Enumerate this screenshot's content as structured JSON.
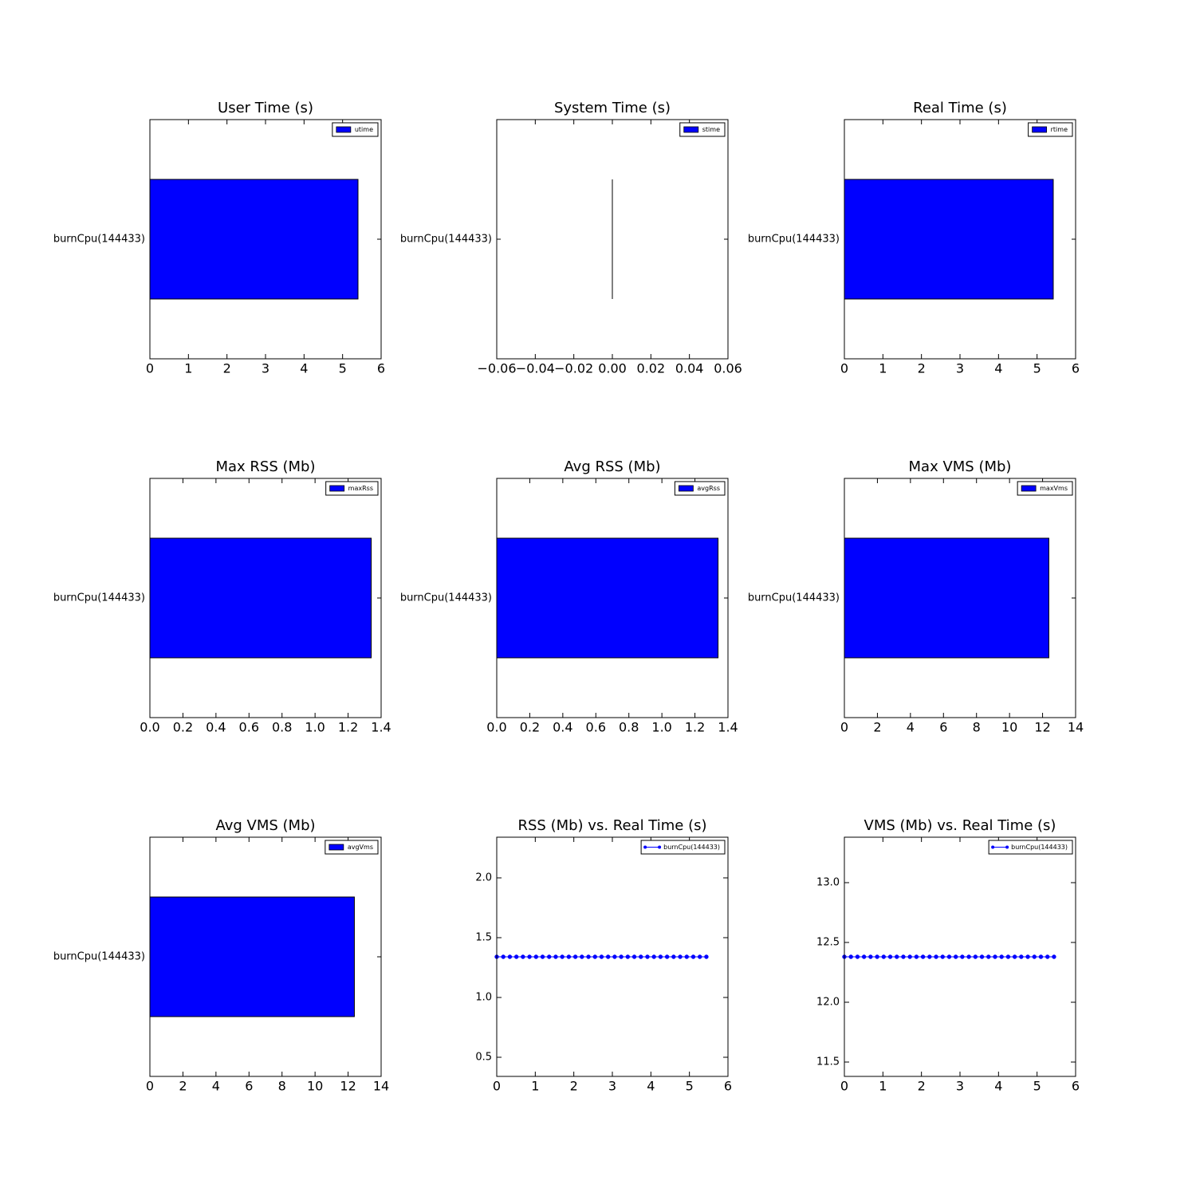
{
  "chart_data": [
    {
      "type": "barh",
      "title": "User Time (s)",
      "categories": [
        "burnCpu(144433)"
      ],
      "series": [
        {
          "name": "utime",
          "color": "#0000ff",
          "values": [
            5.4
          ]
        }
      ],
      "xlim": [
        0,
        6
      ],
      "xticks": [
        0,
        1,
        2,
        3,
        4,
        5,
        6
      ],
      "legend": "upper right"
    },
    {
      "type": "barh",
      "title": "System Time (s)",
      "categories": [
        "burnCpu(144433)"
      ],
      "series": [
        {
          "name": "stime",
          "color": "#0000ff",
          "values": [
            0
          ]
        }
      ],
      "xlim": [
        -0.06,
        0.06
      ],
      "xticks": [
        {
          "value": -0.06,
          "label": "−0.06"
        },
        {
          "value": -0.04,
          "label": "−0.04"
        },
        {
          "value": -0.02,
          "label": "−0.02"
        },
        {
          "value": 0,
          "label": "0.00"
        },
        0.02,
        0.04,
        0.06
      ],
      "legend": "upper right"
    },
    {
      "type": "barh",
      "title": "Real Time (s)",
      "categories": [
        "burnCpu(144433)"
      ],
      "series": [
        {
          "name": "rtime",
          "color": "#0000ff",
          "values": [
            5.42
          ]
        }
      ],
      "xlim": [
        0,
        6
      ],
      "xticks": [
        0,
        1,
        2,
        3,
        4,
        5,
        6
      ],
      "legend": "upper right"
    },
    {
      "type": "barh",
      "title": "Max RSS (Mb)",
      "categories": [
        "burnCpu(144433)"
      ],
      "series": [
        {
          "name": "maxRss",
          "color": "#0000ff",
          "values": [
            1.34
          ]
        }
      ],
      "xlim": [
        0,
        1.4
      ],
      "xticks": [
        {
          "value": 0,
          "label": "0.0"
        },
        0.2,
        0.4,
        0.6,
        0.8,
        {
          "value": 1,
          "label": "1.0"
        },
        1.2,
        1.4
      ],
      "legend": "upper right"
    },
    {
      "type": "barh",
      "title": "Avg RSS (Mb)",
      "categories": [
        "burnCpu(144433)"
      ],
      "series": [
        {
          "name": "avgRss",
          "color": "#0000ff",
          "values": [
            1.34
          ]
        }
      ],
      "xlim": [
        0,
        1.4
      ],
      "xticks": [
        {
          "value": 0,
          "label": "0.0"
        },
        0.2,
        0.4,
        0.6,
        0.8,
        {
          "value": 1,
          "label": "1.0"
        },
        1.2,
        1.4
      ],
      "legend": "upper right"
    },
    {
      "type": "barh",
      "title": "Max VMS (Mb)",
      "categories": [
        "burnCpu(144433)"
      ],
      "series": [
        {
          "name": "maxVms",
          "color": "#0000ff",
          "values": [
            12.38
          ]
        }
      ],
      "xlim": [
        0,
        14
      ],
      "xticks": [
        0,
        2,
        4,
        6,
        8,
        10,
        12,
        14
      ],
      "legend": "upper right"
    },
    {
      "type": "barh",
      "title": "Avg VMS (Mb)",
      "categories": [
        "burnCpu(144433)"
      ],
      "series": [
        {
          "name": "avgVms",
          "color": "#0000ff",
          "values": [
            12.38
          ]
        }
      ],
      "xlim": [
        0,
        14
      ],
      "xticks": [
        0,
        2,
        4,
        6,
        8,
        10,
        12,
        14
      ],
      "legend": "upper right"
    },
    {
      "type": "line",
      "title": "RSS (Mb) vs. Real Time (s)",
      "x": [
        0,
        0.17,
        0.34,
        0.51,
        0.68,
        0.85,
        1.02,
        1.19,
        1.36,
        1.53,
        1.7,
        1.87,
        2.04,
        2.21,
        2.38,
        2.55,
        2.72,
        2.89,
        3.06,
        3.23,
        3.4,
        3.57,
        3.74,
        3.91,
        4.08,
        4.25,
        4.42,
        4.59,
        4.76,
        4.93,
        5.1,
        5.27,
        5.44
      ],
      "series": [
        {
          "name": "burnCpu(144433)",
          "color": "#0000ff",
          "values": [
            1.34,
            1.34,
            1.34,
            1.34,
            1.34,
            1.34,
            1.34,
            1.34,
            1.34,
            1.34,
            1.34,
            1.34,
            1.34,
            1.34,
            1.34,
            1.34,
            1.34,
            1.34,
            1.34,
            1.34,
            1.34,
            1.34,
            1.34,
            1.34,
            1.34,
            1.34,
            1.34,
            1.34,
            1.34,
            1.34,
            1.34,
            1.34,
            1.34
          ]
        }
      ],
      "xlim": [
        0,
        6
      ],
      "xticks": [
        0,
        1,
        2,
        3,
        4,
        5,
        6
      ],
      "ylim": [
        0.34,
        2.34
      ],
      "yticks": [
        0.5,
        {
          "value": 1,
          "label": "1.0"
        },
        1.5,
        {
          "value": 2,
          "label": "2.0"
        }
      ],
      "legend": "upper right"
    },
    {
      "type": "line",
      "title": "VMS (Mb) vs. Real Time (s)",
      "x": [
        0,
        0.17,
        0.34,
        0.51,
        0.68,
        0.85,
        1.02,
        1.19,
        1.36,
        1.53,
        1.7,
        1.87,
        2.04,
        2.21,
        2.38,
        2.55,
        2.72,
        2.89,
        3.06,
        3.23,
        3.4,
        3.57,
        3.74,
        3.91,
        4.08,
        4.25,
        4.42,
        4.59,
        4.76,
        4.93,
        5.1,
        5.27,
        5.44
      ],
      "series": [
        {
          "name": "burnCpu(144433)",
          "color": "#0000ff",
          "values": [
            12.38,
            12.38,
            12.38,
            12.38,
            12.38,
            12.38,
            12.38,
            12.38,
            12.38,
            12.38,
            12.38,
            12.38,
            12.38,
            12.38,
            12.38,
            12.38,
            12.38,
            12.38,
            12.38,
            12.38,
            12.38,
            12.38,
            12.38,
            12.38,
            12.38,
            12.38,
            12.38,
            12.38,
            12.38,
            12.38,
            12.38,
            12.38,
            12.38
          ]
        }
      ],
      "xlim": [
        0,
        6
      ],
      "xticks": [
        0,
        1,
        2,
        3,
        4,
        5,
        6
      ],
      "ylim": [
        11.38,
        13.38
      ],
      "yticks": [
        11.5,
        {
          "value": 12,
          "label": "12.0"
        },
        12.5,
        {
          "value": 13,
          "label": "13.0"
        }
      ],
      "legend": "upper right"
    }
  ]
}
